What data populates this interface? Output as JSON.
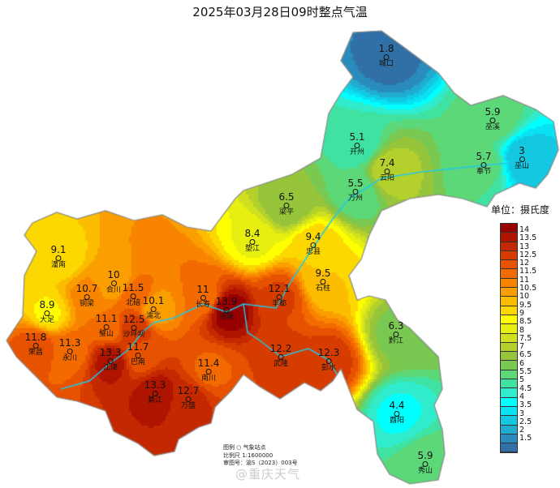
{
  "title": "2025年03月28日09时整点气温",
  "unit_label": "单位：摄氏度",
  "legend": {
    "ticks": [
      "14",
      "13.5",
      "13",
      "12.5",
      "12",
      "11.5",
      "11",
      "10.5",
      "10",
      "9.5",
      "9",
      "8.5",
      "8",
      "7.5",
      "7",
      "6.5",
      "6",
      "5.5",
      "5",
      "4.5",
      "4",
      "3.5",
      "3",
      "2.5",
      "2",
      "1.5"
    ],
    "colors": [
      "#960000",
      "#ae1400",
      "#c42800",
      "#d63c00",
      "#e65200",
      "#f26a00",
      "#f88400",
      "#fb9e00",
      "#fcbc00",
      "#fcd800",
      "#ffff00",
      "#e6ef10",
      "#d0e020",
      "#b4d02c",
      "#96c43a",
      "#78c852",
      "#5cd878",
      "#40e2a2",
      "#30eccc",
      "#00ffff",
      "#08e2f2",
      "#14c8e2",
      "#20accf",
      "#2a8cbc",
      "#3070a6"
    ]
  },
  "map_note": {
    "legend_line": "图例  ○  气象站点",
    "scale_line": "比例尺  1:1600000",
    "approval_line": "审图号：渝S（2023）003号"
  },
  "watermark": "@重庆天气",
  "stations": [
    {
      "name": "城口",
      "value": "1.8",
      "t": 1.8
    },
    {
      "name": "巫溪",
      "value": "5.9",
      "t": 5.9
    },
    {
      "name": "开州",
      "value": "5.1",
      "t": 5.1
    },
    {
      "name": "奉节",
      "value": "5.7",
      "t": 5.7
    },
    {
      "name": "巫山",
      "value": "3",
      "t": 3
    },
    {
      "name": "云阳",
      "value": "7.4",
      "t": 7.4
    },
    {
      "name": "万州",
      "value": "5.5",
      "t": 5.5
    },
    {
      "name": "梁平",
      "value": "6.5",
      "t": 6.5
    },
    {
      "name": "垫江",
      "value": "8.4",
      "t": 8.4
    },
    {
      "name": "忠县",
      "value": "9.4",
      "t": 9.4
    },
    {
      "name": "石柱",
      "value": "9.5",
      "t": 9.5
    },
    {
      "name": "潼南",
      "value": "9.1",
      "t": 9.1
    },
    {
      "name": "合川",
      "value": "10",
      "t": 10
    },
    {
      "name": "铜梁",
      "value": "10.7",
      "t": 10.7
    },
    {
      "name": "北碚",
      "value": "11.5",
      "t": 11.5
    },
    {
      "name": "渝北",
      "value": "10.1",
      "t": 10.1
    },
    {
      "name": "长寿",
      "value": "11",
      "t": 11
    },
    {
      "name": "涪陵",
      "value": "13.9",
      "t": 13.9
    },
    {
      "name": "丰都",
      "value": "12.1",
      "t": 12.1
    },
    {
      "name": "大足",
      "value": "8.9",
      "t": 8.9
    },
    {
      "name": "璧山",
      "value": "11.1",
      "t": 11.1
    },
    {
      "name": "沙坪坝",
      "value": "12.5",
      "t": 12.5
    },
    {
      "name": "荣昌",
      "value": "11.8",
      "t": 11.8
    },
    {
      "name": "永川",
      "value": "11.3",
      "t": 11.3
    },
    {
      "name": "江津",
      "value": "13.3",
      "t": 13.3
    },
    {
      "name": "巴南",
      "value": "11.7",
      "t": 11.7
    },
    {
      "name": "武隆",
      "value": "12.2",
      "t": 12.2
    },
    {
      "name": "彭水",
      "value": "12.3",
      "t": 12.3
    },
    {
      "name": "南川",
      "value": "11.4",
      "t": 11.4
    },
    {
      "name": "綦江",
      "value": "13.3",
      "t": 13.3
    },
    {
      "name": "万盛",
      "value": "12.7",
      "t": 12.7
    },
    {
      "name": "黔江",
      "value": "6.3",
      "t": 6.3
    },
    {
      "name": "酉阳",
      "value": "4.4",
      "t": 4.4
    },
    {
      "name": "秀山",
      "value": "5.9",
      "t": 5.9
    }
  ]
}
